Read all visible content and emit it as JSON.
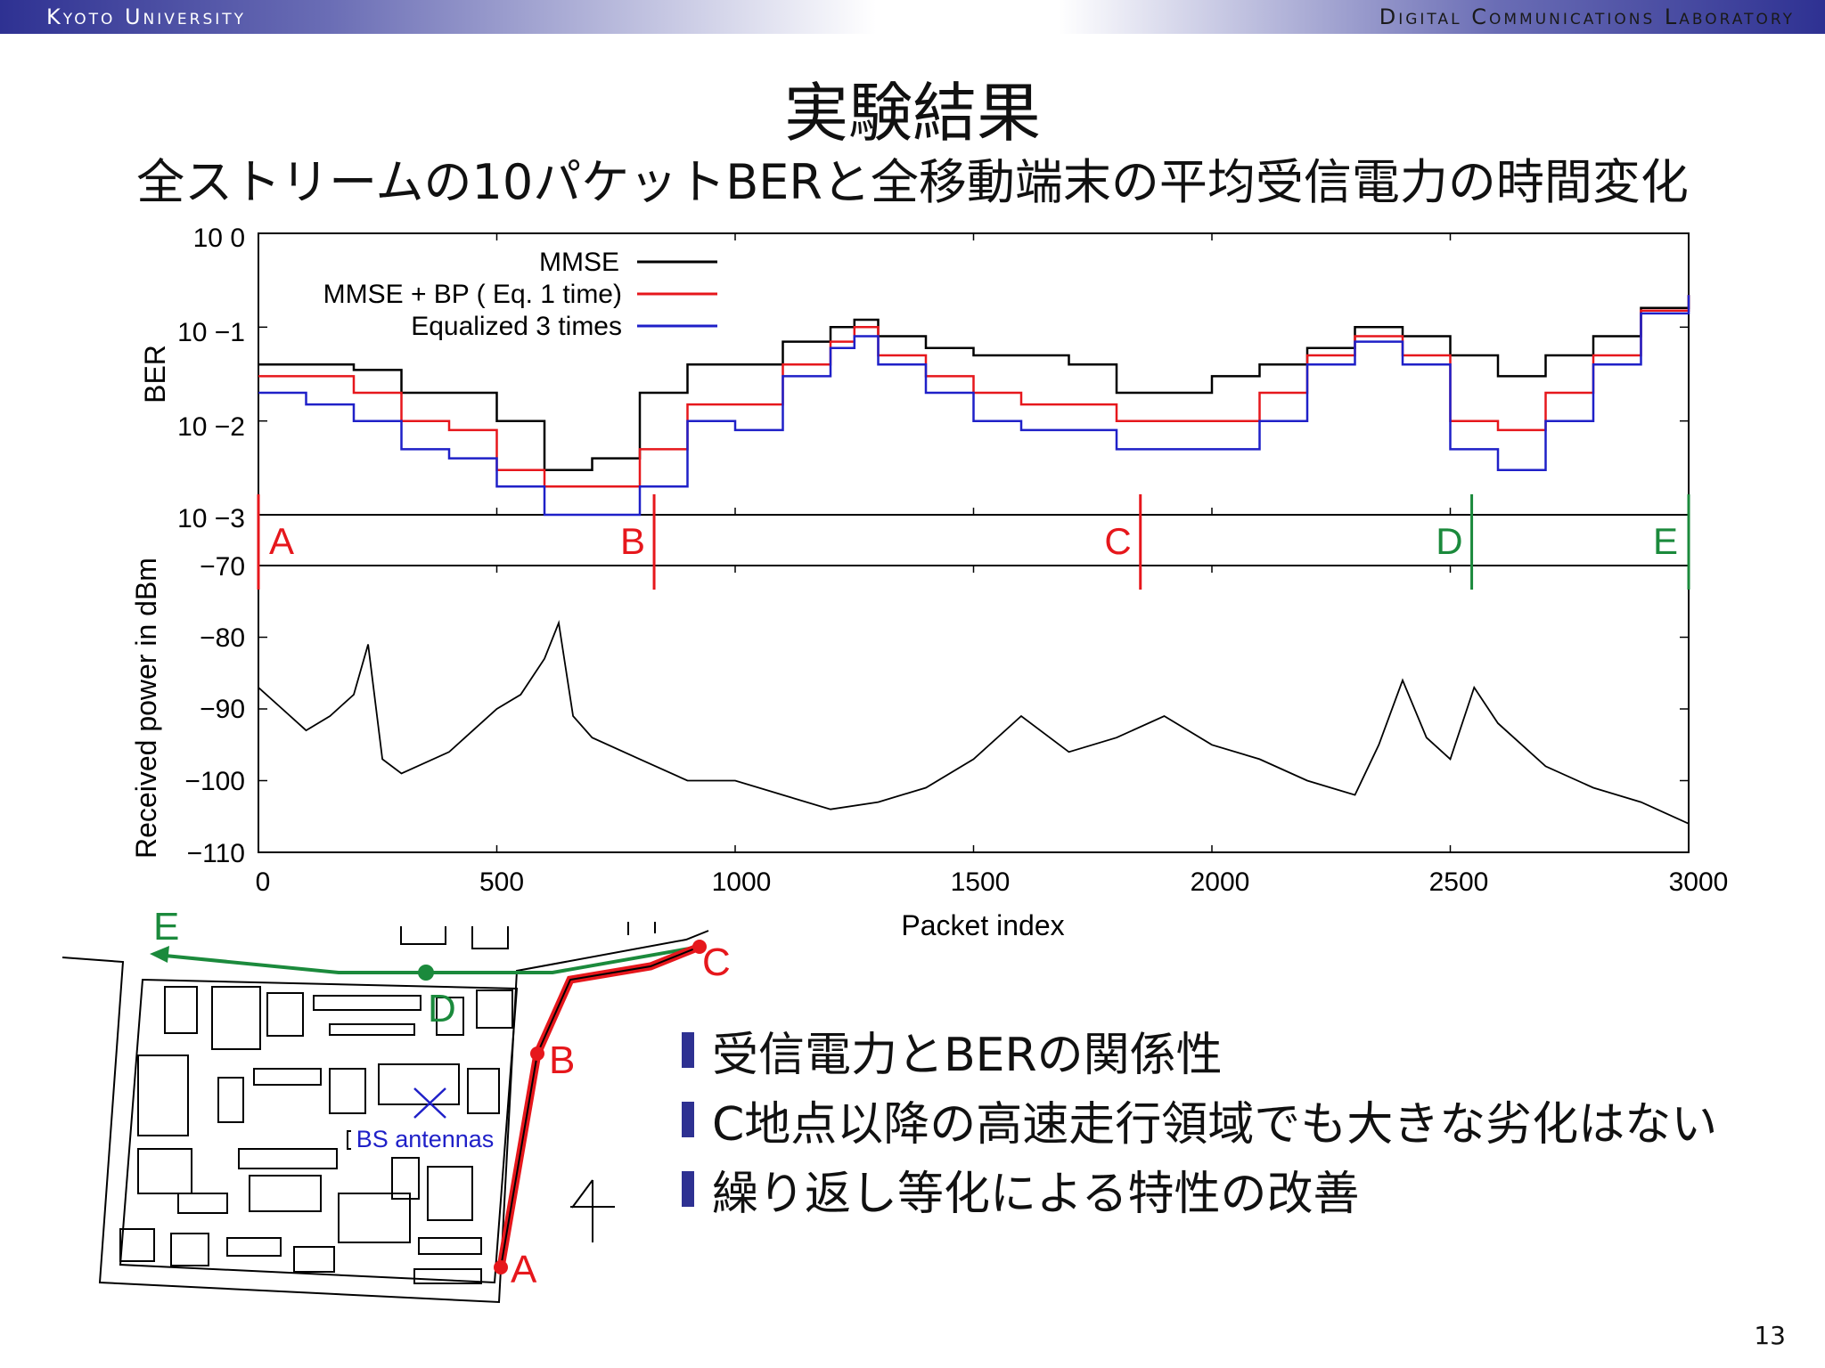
{
  "header": {
    "left": "Kyoto University",
    "right": "Digital Communications Laboratory"
  },
  "title": "実験結果",
  "subtitle": "全ストリームの10パケットBERと全移動端末の平均受信電力の時間変化",
  "page_number": "13",
  "colors": {
    "mmse": "#000000",
    "mmse_bp": "#e6171c",
    "equalized3": "#1f20c8",
    "route_red": "#e6171c",
    "route_green": "#1b8a3c",
    "accent": "#2e3192"
  },
  "bullets": [
    "受信電力とBERの関係性",
    "C地点以降の高速走行領域でも大きな劣化はない",
    "繰り返し等化による特性の改善"
  ],
  "chart_data": [
    {
      "type": "line",
      "ylabel": "BER",
      "ylog": true,
      "ylim": [
        0.001,
        1
      ],
      "xlim": [
        0,
        3000
      ],
      "yticks": [
        "10 0",
        "10 −1",
        "10 −2",
        "10 −3"
      ],
      "legend": {
        "placement": "top-left",
        "entries": [
          "MMSE",
          "MMSE + BP ( Eq. 1 time)",
          "Equalized 3 times"
        ]
      },
      "x": [
        0,
        100,
        200,
        300,
        400,
        500,
        600,
        700,
        800,
        900,
        1000,
        1100,
        1200,
        1250,
        1300,
        1400,
        1500,
        1600,
        1700,
        1800,
        1900,
        2000,
        2100,
        2200,
        2300,
        2400,
        2500,
        2600,
        2700,
        2800,
        2900,
        3000
      ],
      "series": [
        {
          "name": "MMSE",
          "values": [
            0.04,
            0.04,
            0.035,
            0.02,
            0.02,
            0.01,
            0.003,
            0.004,
            0.02,
            0.04,
            0.04,
            0.07,
            0.1,
            0.12,
            0.08,
            0.06,
            0.05,
            0.05,
            0.04,
            0.02,
            0.02,
            0.03,
            0.04,
            0.06,
            0.1,
            0.08,
            0.05,
            0.03,
            0.05,
            0.08,
            0.16,
            0.22
          ]
        },
        {
          "name": "MMSE + BP ( Eq. 1 time)",
          "values": [
            0.03,
            0.03,
            0.02,
            0.01,
            0.008,
            0.003,
            0.002,
            0.002,
            0.005,
            0.015,
            0.015,
            0.04,
            0.07,
            0.1,
            0.05,
            0.03,
            0.02,
            0.015,
            0.015,
            0.01,
            0.01,
            0.01,
            0.02,
            0.05,
            0.08,
            0.05,
            0.01,
            0.008,
            0.02,
            0.05,
            0.15,
            0.22
          ]
        },
        {
          "name": "Equalized 3 times",
          "values": [
            0.02,
            0.015,
            0.01,
            0.005,
            0.004,
            0.002,
            0.001,
            0.001,
            0.002,
            0.01,
            0.008,
            0.03,
            0.06,
            0.08,
            0.04,
            0.02,
            0.01,
            0.008,
            0.008,
            0.005,
            0.005,
            0.005,
            0.01,
            0.04,
            0.07,
            0.04,
            0.005,
            0.003,
            0.01,
            0.04,
            0.14,
            0.22
          ]
        }
      ]
    },
    {
      "type": "line",
      "ylabel": "Received power in dBm",
      "xlabel": "Packet index",
      "ylim": [
        -110,
        -70
      ],
      "xlim": [
        0,
        3000
      ],
      "xticks": [
        0,
        500,
        1000,
        1500,
        2000,
        2500,
        3000
      ],
      "yticks": [
        -70,
        -80,
        -90,
        -100,
        -110
      ],
      "ytick_labels": [
        "−70",
        "−80",
        "−90",
        "−100",
        "−110"
      ],
      "x": [
        0,
        50,
        100,
        150,
        200,
        230,
        260,
        300,
        400,
        450,
        500,
        550,
        600,
        630,
        660,
        700,
        800,
        900,
        1000,
        1100,
        1200,
        1300,
        1400,
        1500,
        1600,
        1700,
        1800,
        1900,
        2000,
        2100,
        2200,
        2300,
        2350,
        2400,
        2450,
        2500,
        2550,
        2600,
        2700,
        2800,
        2900,
        3000
      ],
      "values": [
        -87,
        -90,
        -93,
        -91,
        -88,
        -81,
        -97,
        -99,
        -96,
        -93,
        -90,
        -88,
        -83,
        -78,
        -91,
        -94,
        -97,
        -100,
        -100,
        -102,
        -104,
        -103,
        -101,
        -97,
        -91,
        -96,
        -94,
        -91,
        -95,
        -97,
        -100,
        -102,
        -95,
        -86,
        -94,
        -97,
        -87,
        -92,
        -98,
        -101,
        -103,
        -106
      ]
    }
  ],
  "markers": [
    {
      "label": "A",
      "x": 0,
      "color": "red"
    },
    {
      "label": "B",
      "x": 830,
      "color": "red"
    },
    {
      "label": "C",
      "x": 1850,
      "color": "red"
    },
    {
      "label": "D",
      "x": 2545,
      "color": "green"
    },
    {
      "label": "E",
      "x": 3000,
      "color": "green"
    }
  ],
  "map": {
    "antenna_label": "BS antennas",
    "points": [
      "A",
      "B",
      "C",
      "D",
      "E"
    ]
  }
}
